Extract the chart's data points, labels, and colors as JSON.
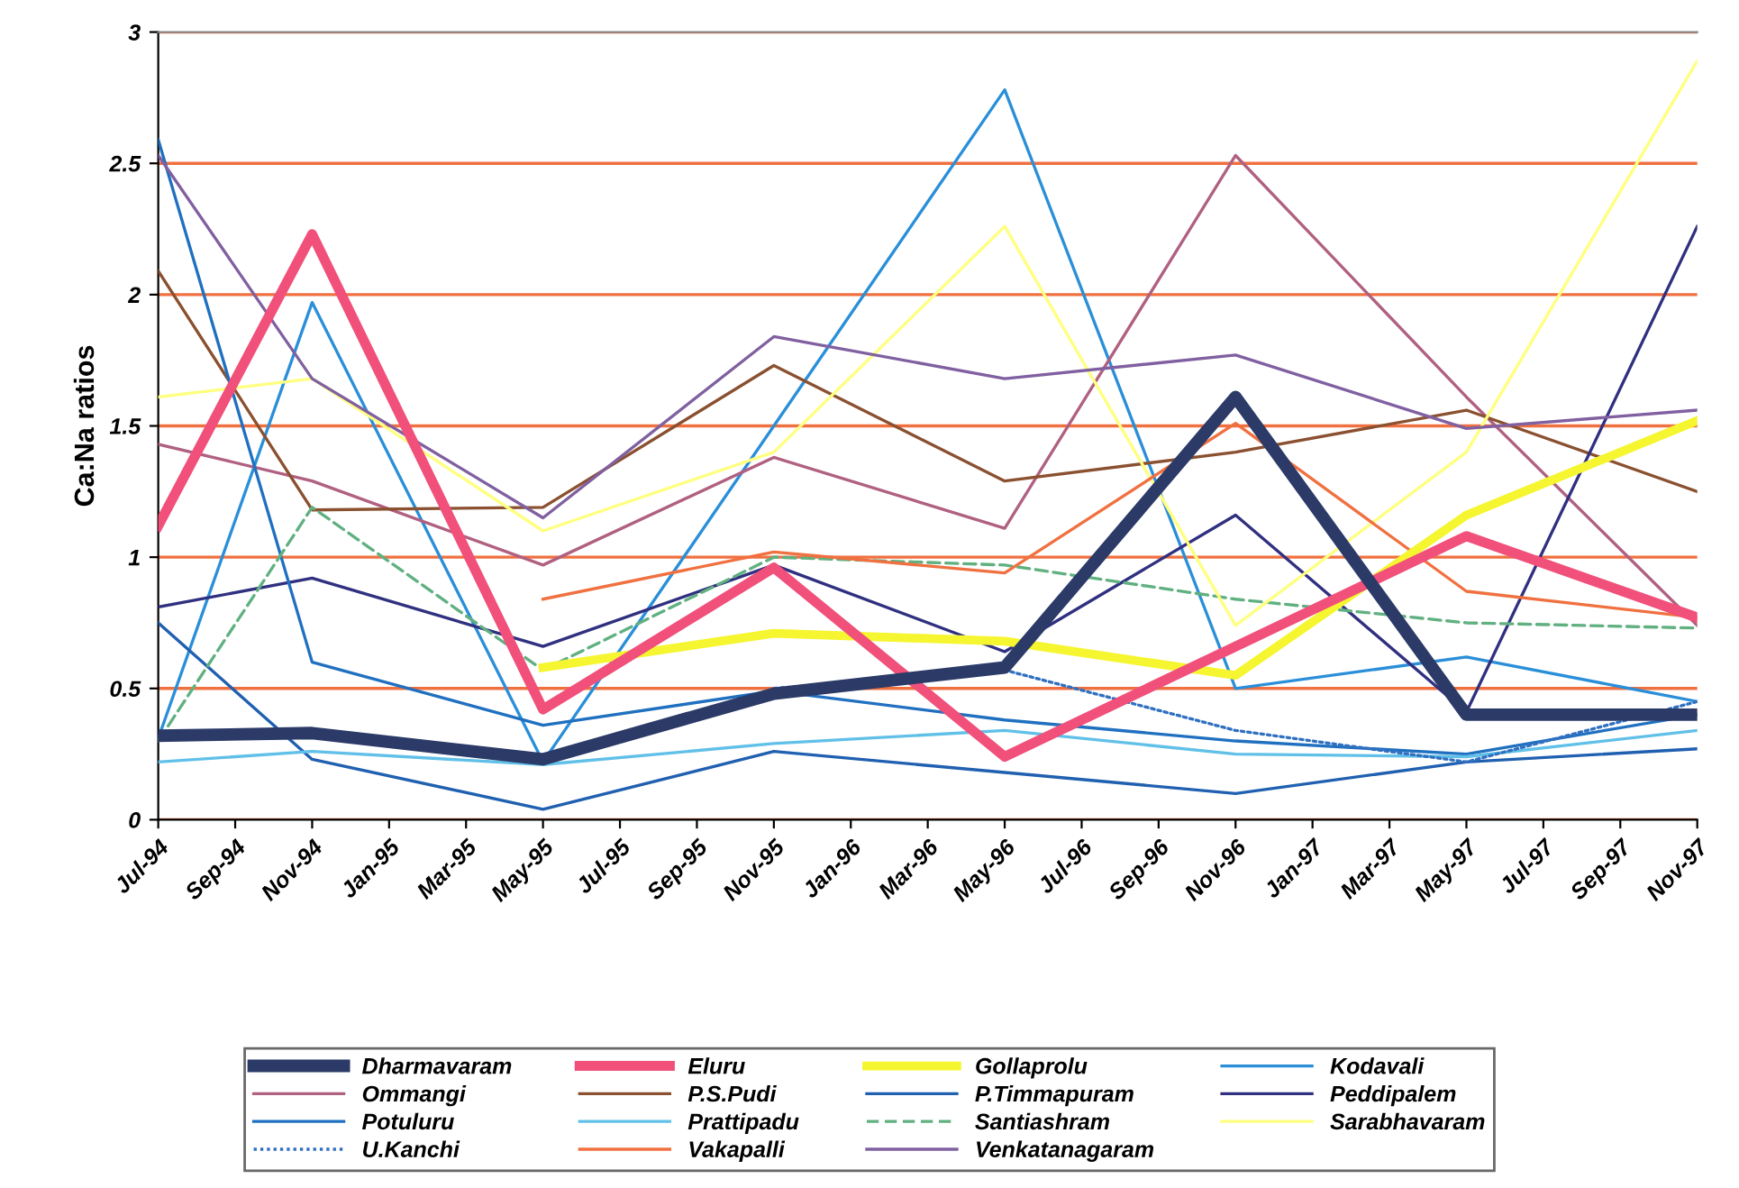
{
  "chart_data": {
    "type": "line",
    "ylabel": "Ca:Na ratios",
    "x": [
      "1994-07",
      "1994-11",
      "1995-05",
      "1995-11",
      "1996-05",
      "1996-11",
      "1997-05",
      "1997-11"
    ],
    "xlim": [
      "1994-07",
      "1997-11"
    ],
    "xticks": [
      {
        "value": "1994-07",
        "label": "Jul-94"
      },
      {
        "value": "1994-09",
        "label": "Sep-94"
      },
      {
        "value": "1994-11",
        "label": "Nov-94"
      },
      {
        "value": "1995-01",
        "label": "Jan-95"
      },
      {
        "value": "1995-03",
        "label": "Mar-95"
      },
      {
        "value": "1995-05",
        "label": "May-95"
      },
      {
        "value": "1995-07",
        "label": "Jul-95"
      },
      {
        "value": "1995-09",
        "label": "Sep-95"
      },
      {
        "value": "1995-11",
        "label": "Nov-95"
      },
      {
        "value": "1996-01",
        "label": "Jan-96"
      },
      {
        "value": "1996-03",
        "label": "Mar-96"
      },
      {
        "value": "1996-05",
        "label": "May-96"
      },
      {
        "value": "1996-07",
        "label": "Jul-96"
      },
      {
        "value": "1996-09",
        "label": "Sep-96"
      },
      {
        "value": "1996-11",
        "label": "Nov-96"
      },
      {
        "value": "1997-01",
        "label": "Jan-97"
      },
      {
        "value": "1997-03",
        "label": "Mar-97"
      },
      {
        "value": "1997-05",
        "label": "May-97"
      },
      {
        "value": "1997-07",
        "label": "Jul-97"
      },
      {
        "value": "1997-09",
        "label": "Sep-97"
      },
      {
        "value": "1997-11",
        "label": "Nov-97"
      }
    ],
    "ylim": [
      0,
      3
    ],
    "yticks": [
      0,
      0.5,
      1,
      1.5,
      2,
      2.5,
      3
    ],
    "grid": "y",
    "legend": "bottom",
    "marker": "none",
    "line_style": "solid",
    "series": [
      {
        "name": "Dharmavaram",
        "color": "#2b3a67",
        "values": [
          0.32,
          0.33,
          0.23,
          0.48,
          0.58,
          1.61,
          0.4,
          0.4
        ]
      },
      {
        "name": "Eluru",
        "color": "#f0507a",
        "values": [
          1.12,
          2.23,
          0.42,
          0.96,
          0.24,
          0.66,
          1.08,
          0.77
        ]
      },
      {
        "name": "Gollaprolu",
        "color": "#f5f530",
        "values": [
          null,
          null,
          0.58,
          0.71,
          0.68,
          0.55,
          1.16,
          1.52
        ]
      },
      {
        "name": "Kodavali",
        "color": "#2a8fd8",
        "values": [
          0.31,
          1.97,
          0.22,
          1.5,
          2.78,
          0.5,
          0.62,
          0.45
        ]
      },
      {
        "name": "Ommangi",
        "color": "#b06080",
        "values": [
          1.43,
          1.29,
          0.97,
          1.38,
          1.11,
          2.53,
          1.61,
          0.74
        ]
      },
      {
        "name": "P.S.Pudi",
        "color": "#8a5030",
        "values": [
          2.09,
          1.18,
          1.19,
          1.73,
          1.29,
          1.4,
          1.56,
          1.25
        ]
      },
      {
        "name": "P.Timmapuram",
        "color": "#2060b0",
        "values": [
          0.75,
          0.23,
          0.04,
          0.26,
          0.18,
          0.1,
          0.22,
          0.27
        ]
      },
      {
        "name": "Peddipalem",
        "color": "#303080",
        "values": [
          0.81,
          0.92,
          0.66,
          0.97,
          0.64,
          1.16,
          0.41,
          2.26
        ]
      },
      {
        "name": "Potuluru",
        "color": "#2070c0",
        "values": [
          2.59,
          0.6,
          0.36,
          0.49,
          0.38,
          0.3,
          0.25,
          0.4
        ]
      },
      {
        "name": "Prattipadu",
        "color": "#60c0e8",
        "values": [
          0.22,
          0.26,
          0.21,
          0.29,
          0.34,
          0.25,
          0.24,
          0.34
        ]
      },
      {
        "name": "Santiashram",
        "color": "#60b080",
        "line_style": "dashed",
        "values": [
          0.3,
          1.19,
          0.57,
          1.0,
          0.97,
          0.84,
          0.75,
          0.73
        ]
      },
      {
        "name": "Sarabhavaram",
        "color": "#ffff80",
        "values": [
          1.61,
          1.68,
          1.1,
          1.4,
          2.26,
          0.74,
          1.4,
          2.89
        ]
      },
      {
        "name": "U.Kanchi",
        "color": "#3070c0",
        "line_style": "dotted",
        "values": [
          null,
          null,
          null,
          0.5,
          0.57,
          0.34,
          0.22,
          0.45
        ]
      },
      {
        "name": "Vakapalli",
        "color": "#f07040",
        "values": [
          null,
          null,
          0.84,
          1.02,
          0.94,
          1.51,
          0.87,
          0.77
        ]
      },
      {
        "name": "Venkatanagaram",
        "color": "#8060a0",
        "values": [
          2.53,
          1.68,
          1.15,
          1.84,
          1.68,
          1.77,
          1.49,
          1.56
        ]
      }
    ]
  }
}
